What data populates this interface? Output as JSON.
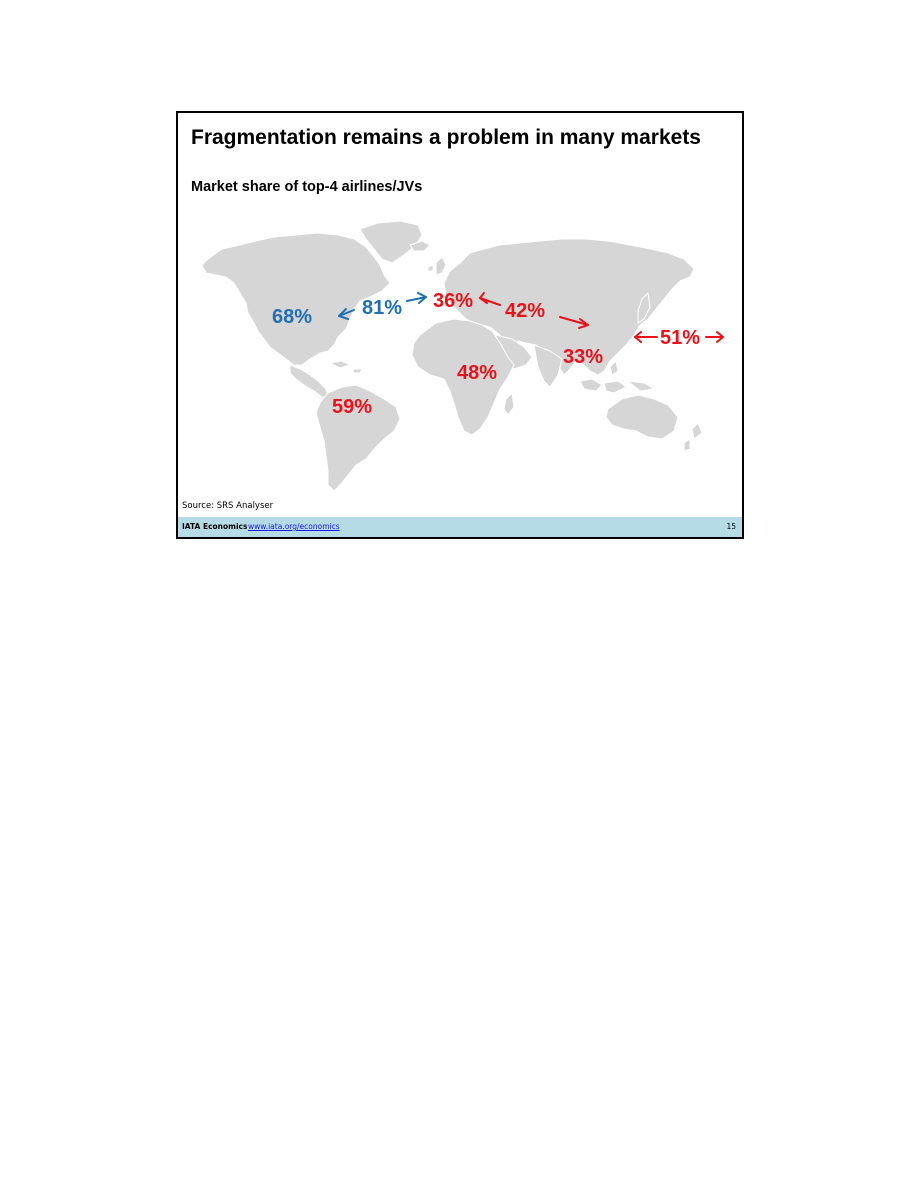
{
  "slide": {
    "title": "Fragmentation remains a problem in many markets",
    "subtitle": "Market share of top-4 airlines/JVs",
    "source": "Source: SRS Analyser"
  },
  "map": {
    "land_color": "#d6d6d6",
    "labels": {
      "north_america": {
        "text": "68%",
        "color": "#1f6fb4"
      },
      "north_atlantic": {
        "text": "81%",
        "color": "#1f6fb4"
      },
      "europe": {
        "text": "36%",
        "color": "#e8121b"
      },
      "europe_asia": {
        "text": "42%",
        "color": "#e8121b"
      },
      "asia": {
        "text": "33%",
        "color": "#e8121b"
      },
      "africa": {
        "text": "48%",
        "color": "#e8121b"
      },
      "south_america": {
        "text": "59%",
        "color": "#e8121b"
      },
      "transpacific": {
        "text": "51%",
        "color": "#e8121b"
      }
    }
  },
  "footer": {
    "org": "IATA Economics",
    "link": "www.iata.org/economics",
    "page": "15",
    "background": "#b5dbe6"
  }
}
